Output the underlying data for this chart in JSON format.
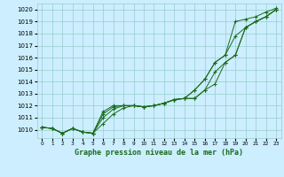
{
  "xlabel": "Graphe pression niveau de la mer (hPa)",
  "bg_color": "#cceeff",
  "grid_color": "#99cccc",
  "line_color": "#1a6b1a",
  "ylim": [
    1009.3,
    1020.5
  ],
  "xlim": [
    -0.5,
    23.5
  ],
  "yticks": [
    1010,
    1011,
    1012,
    1013,
    1014,
    1015,
    1016,
    1017,
    1018,
    1019,
    1020
  ],
  "xticks": [
    0,
    1,
    2,
    3,
    4,
    5,
    6,
    7,
    8,
    9,
    10,
    11,
    12,
    13,
    14,
    15,
    16,
    17,
    18,
    19,
    20,
    21,
    22,
    23
  ],
  "series": [
    [
      1010.2,
      1010.1,
      1009.7,
      1010.1,
      1009.8,
      1009.7,
      1010.5,
      1011.3,
      1011.8,
      1012.0,
      1011.9,
      1012.0,
      1012.2,
      1012.5,
      1012.6,
      1013.3,
      1014.2,
      1015.6,
      1016.2,
      1019.0,
      1019.2,
      1019.4,
      1019.8,
      1020.1
    ],
    [
      1010.2,
      1010.1,
      1009.7,
      1010.1,
      1009.8,
      1009.7,
      1011.0,
      1011.7,
      1012.0,
      1012.0,
      1011.9,
      1012.0,
      1012.2,
      1012.5,
      1012.6,
      1013.3,
      1014.2,
      1015.6,
      1016.2,
      1017.8,
      1018.5,
      1019.0,
      1019.4,
      1020.0
    ],
    [
      1010.2,
      1010.1,
      1009.7,
      1010.1,
      1009.8,
      1009.7,
      1011.3,
      1011.9,
      1012.0,
      1012.0,
      1011.9,
      1012.0,
      1012.2,
      1012.5,
      1012.6,
      1012.6,
      1013.3,
      1014.8,
      1015.6,
      1016.2,
      1018.5,
      1019.0,
      1019.4,
      1020.0
    ],
    [
      1010.2,
      1010.1,
      1009.7,
      1010.1,
      1009.8,
      1009.7,
      1011.5,
      1012.0,
      1012.0,
      1012.0,
      1011.9,
      1012.0,
      1012.2,
      1012.5,
      1012.6,
      1012.6,
      1013.3,
      1013.8,
      1015.6,
      1016.2,
      1018.5,
      1019.0,
      1019.4,
      1020.0
    ]
  ]
}
